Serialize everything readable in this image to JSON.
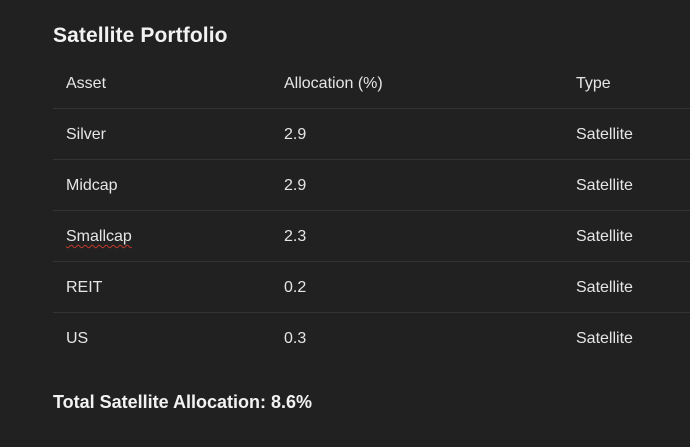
{
  "title": "Satellite Portfolio",
  "table": {
    "headers": [
      "Asset",
      "Allocation (%)",
      "Type"
    ],
    "rows": [
      {
        "asset": "Silver",
        "allocation": "2.9",
        "type": "Satellite"
      },
      {
        "asset": "Midcap",
        "allocation": "2.9",
        "type": "Satellite"
      },
      {
        "asset": "Smallcap",
        "allocation": "2.3",
        "type": "Satellite"
      },
      {
        "asset": "REIT",
        "allocation": "0.2",
        "type": "Satellite"
      },
      {
        "asset": "US",
        "allocation": "0.3",
        "type": "Satellite"
      }
    ]
  },
  "total": "Total Satellite Allocation: 8.6%"
}
